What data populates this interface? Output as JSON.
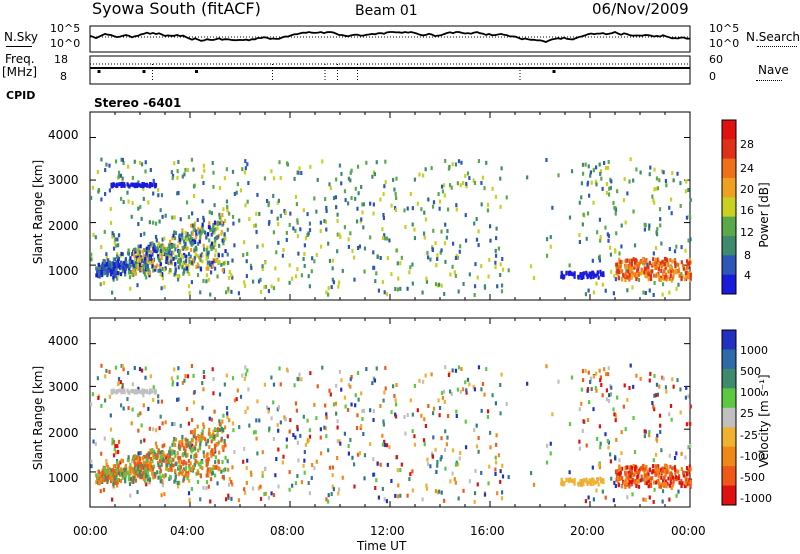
{
  "header": {
    "title": "Syowa South (fitACF)",
    "beam": "Beam 01",
    "date": "06/Nov/2009"
  },
  "strips": {
    "nsky_label": "N.Sky",
    "nsky_ticks": [
      "10^5",
      "10^0"
    ],
    "nsearch_label": "N.Search",
    "freq_label_1": "Freq.",
    "freq_label_2": "[MHz]",
    "freq_ticks": [
      "18",
      "8"
    ],
    "nave_label": "Nave",
    "nave_ticks": [
      "60",
      "0"
    ],
    "cpid_label": "CPID",
    "cpid_value": "Stereo -6401"
  },
  "colors": {
    "power": [
      "#1a1adc",
      "#2c56b8",
      "#3e8a6e",
      "#5aa84a",
      "#c8d020",
      "#f0a020",
      "#f07018",
      "#e03018",
      "#e01010"
    ],
    "velocity": [
      "#2030c0",
      "#2e6aa8",
      "#3e8a6e",
      "#5ac840",
      "#c0c0c0",
      "#f0b030",
      "#f08818",
      "#f05818",
      "#e01010"
    ]
  },
  "chart_data": [
    {
      "type": "heatmap",
      "panel": "power",
      "ylabel": "Slant Range [km]",
      "yticks": [
        "4000",
        "3000",
        "2000",
        "1000"
      ],
      "ylim": [
        180,
        4600
      ],
      "xlim": [
        "00:00",
        "24:00"
      ],
      "colorbar_label": "Power [dB]",
      "colorbar_ticks": [
        "28",
        "24",
        "20",
        "16",
        "12",
        "8",
        "4"
      ],
      "colorbar_range": [
        0,
        30
      ]
    },
    {
      "type": "heatmap",
      "panel": "velocity",
      "ylabel": "Slant Range [km]",
      "yticks": [
        "4000",
        "3000",
        "2000",
        "1000"
      ],
      "ylim": [
        180,
        4600
      ],
      "xlim": [
        "00:00",
        "24:00"
      ],
      "colorbar_label": "Velocity [m s⁻¹]",
      "colorbar_ticks": [
        "1000",
        "500",
        "100",
        "25",
        "-25",
        "-100",
        "-500",
        "-1000"
      ]
    }
  ],
  "x_axis": {
    "ticks": [
      "00:00",
      "04:00",
      "08:00",
      "12:00",
      "16:00",
      "20:00",
      "00:00"
    ],
    "label": "Time UT"
  }
}
